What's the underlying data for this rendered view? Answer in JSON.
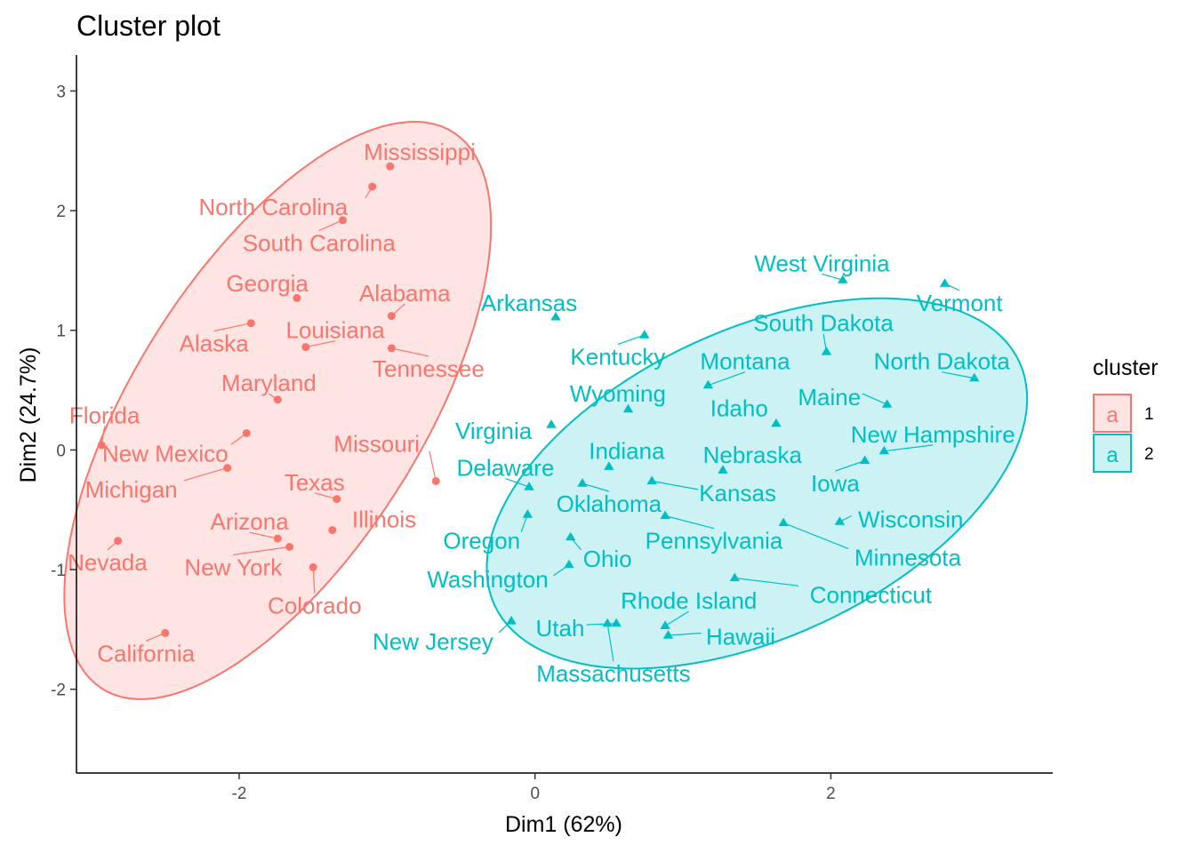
{
  "chart_data": {
    "type": "scatter",
    "title": "Cluster plot",
    "xlabel": "Dim1 (62%)",
    "ylabel": "Dim2 (24.7%)",
    "xlim": [
      -3.1,
      3.5
    ],
    "ylim": [
      -2.7,
      3.3
    ],
    "x_ticks": [
      -2,
      0,
      2
    ],
    "y_ticks": [
      -2,
      -1,
      0,
      1,
      2,
      3
    ],
    "grid": false,
    "legend": {
      "title": "cluster",
      "placement": "right",
      "entries": [
        {
          "label": "1",
          "key_glyph": "a"
        },
        {
          "label": "2",
          "key_glyph": "a"
        }
      ]
    },
    "colors": {
      "cluster1": "#F8766D",
      "cluster2": "#00BFC4"
    },
    "series": [
      {
        "name": "1",
        "marker": "circle",
        "points": [
          {
            "label": "Mississippi",
            "x": -0.98,
            "y": 2.37,
            "lx": -0.78,
            "ly": 2.49
          },
          {
            "label": "North Carolina",
            "x": -1.1,
            "y": 2.2,
            "lx": -1.77,
            "ly": 2.03
          },
          {
            "label": "South Carolina",
            "x": -1.3,
            "y": 1.92,
            "lx": -1.46,
            "ly": 1.73
          },
          {
            "label": "Georgia",
            "x": -1.61,
            "y": 1.27,
            "lx": -1.81,
            "ly": 1.39
          },
          {
            "label": "Alabama",
            "x": -0.97,
            "y": 1.12,
            "lx": -0.88,
            "ly": 1.31
          },
          {
            "label": "Alaska",
            "x": -1.92,
            "y": 1.06,
            "lx": -2.17,
            "ly": 0.89
          },
          {
            "label": "Louisiana",
            "x": -1.55,
            "y": 0.86,
            "lx": -1.35,
            "ly": 1.0
          },
          {
            "label": "Tennessee",
            "x": -0.97,
            "y": 0.85,
            "lx": -0.72,
            "ly": 0.68
          },
          {
            "label": "Maryland",
            "x": -1.74,
            "y": 0.42,
            "lx": -1.8,
            "ly": 0.56
          },
          {
            "label": "Florida",
            "x": -2.93,
            "y": 0.04,
            "lx": -2.91,
            "ly": 0.29
          },
          {
            "label": "New Mexico",
            "x": -1.95,
            "y": 0.14,
            "lx": -2.5,
            "ly": -0.03
          },
          {
            "label": "Michigan",
            "x": -2.08,
            "y": -0.15,
            "lx": -2.73,
            "ly": -0.33
          },
          {
            "label": "Missouri",
            "x": -0.67,
            "y": -0.26,
            "lx": -1.07,
            "ly": 0.05
          },
          {
            "label": "Texas",
            "x": -1.34,
            "y": -0.41,
            "lx": -1.49,
            "ly": -0.27
          },
          {
            "label": "Illinois",
            "x": -1.37,
            "y": -0.67,
            "lx": -1.02,
            "ly": -0.58
          },
          {
            "label": "Arizona",
            "x": -1.74,
            "y": -0.74,
            "lx": -1.93,
            "ly": -0.6
          },
          {
            "label": "New York",
            "x": -1.66,
            "y": -0.81,
            "lx": -2.04,
            "ly": -0.98
          },
          {
            "label": "Colorado",
            "x": -1.5,
            "y": -0.98,
            "lx": -1.49,
            "ly": -1.3
          },
          {
            "label": "Nevada",
            "x": -2.82,
            "y": -0.76,
            "lx": -2.89,
            "ly": -0.94
          },
          {
            "label": "California",
            "x": -2.5,
            "y": -1.53,
            "lx": -2.63,
            "ly": -1.7
          }
        ]
      },
      {
        "name": "2",
        "marker": "triangle",
        "points": [
          {
            "label": "West Virginia",
            "x": 2.08,
            "y": 1.42,
            "lx": 1.94,
            "ly": 1.56
          },
          {
            "label": "Vermont",
            "x": 2.77,
            "y": 1.39,
            "lx": 2.87,
            "ly": 1.23
          },
          {
            "label": "Arkansas",
            "x": 0.14,
            "y": 1.11,
            "lx": -0.04,
            "ly": 1.23
          },
          {
            "label": "South Dakota",
            "x": 1.97,
            "y": 0.82,
            "lx": 1.95,
            "ly": 1.06
          },
          {
            "label": "Kentucky",
            "x": 0.74,
            "y": 0.96,
            "lx": 0.56,
            "ly": 0.78
          },
          {
            "label": "Montana",
            "x": 1.17,
            "y": 0.54,
            "lx": 1.42,
            "ly": 0.74
          },
          {
            "label": "North Dakota",
            "x": 2.97,
            "y": 0.6,
            "lx": 2.75,
            "ly": 0.74
          },
          {
            "label": "Wyoming",
            "x": 0.63,
            "y": 0.34,
            "lx": 0.56,
            "ly": 0.47
          },
          {
            "label": "Idaho",
            "x": 1.63,
            "y": 0.22,
            "lx": 1.38,
            "ly": 0.35
          },
          {
            "label": "Maine",
            "x": 2.38,
            "y": 0.38,
            "lx": 1.99,
            "ly": 0.44
          },
          {
            "label": "Virginia",
            "x": 0.11,
            "y": 0.21,
            "lx": -0.28,
            "ly": 0.16
          },
          {
            "label": "New Hampshire",
            "x": 2.36,
            "y": -0.01,
            "lx": 2.69,
            "ly": 0.13
          },
          {
            "label": "Indiana",
            "x": 0.5,
            "y": -0.14,
            "lx": 0.62,
            "ly": -0.01
          },
          {
            "label": "Nebraska",
            "x": 1.27,
            "y": -0.17,
            "lx": 1.47,
            "ly": -0.04
          },
          {
            "label": "Iowa",
            "x": 2.23,
            "y": -0.09,
            "lx": 2.03,
            "ly": -0.28
          },
          {
            "label": "Delaware",
            "x": -0.04,
            "y": -0.31,
            "lx": -0.2,
            "ly": -0.15
          },
          {
            "label": "Kansas",
            "x": 0.79,
            "y": -0.26,
            "lx": 1.37,
            "ly": -0.36
          },
          {
            "label": "Oklahoma",
            "x": 0.32,
            "y": -0.28,
            "lx": 0.5,
            "ly": -0.45
          },
          {
            "label": "Oregon",
            "x": -0.05,
            "y": -0.54,
            "lx": -0.36,
            "ly": -0.76
          },
          {
            "label": "Wisconsin",
            "x": 2.06,
            "y": -0.6,
            "lx": 2.54,
            "ly": -0.58
          },
          {
            "label": "Pennsylvania",
            "x": 0.88,
            "y": -0.55,
            "lx": 1.21,
            "ly": -0.76
          },
          {
            "label": "Minnesota",
            "x": 1.68,
            "y": -0.61,
            "lx": 2.52,
            "ly": -0.9
          },
          {
            "label": "Ohio",
            "x": 0.24,
            "y": -0.73,
            "lx": 0.49,
            "ly": -0.91
          },
          {
            "label": "Washington",
            "x": 0.23,
            "y": -0.96,
            "lx": -0.32,
            "ly": -1.08
          },
          {
            "label": "Connecticut",
            "x": 1.35,
            "y": -1.07,
            "lx": 2.27,
            "ly": -1.21
          },
          {
            "label": "Rhode Island",
            "x": 0.88,
            "y": -1.47,
            "lx": 1.04,
            "ly": -1.26
          },
          {
            "label": "Utah",
            "x": 0.55,
            "y": -1.45,
            "lx": 0.17,
            "ly": -1.49
          },
          {
            "label": "Massachusetts",
            "x": 0.49,
            "y": -1.45,
            "lx": 0.53,
            "ly": -1.87
          },
          {
            "label": "Hawaii",
            "x": 0.9,
            "y": -1.55,
            "lx": 1.39,
            "ly": -1.56
          },
          {
            "label": "New Jersey",
            "x": -0.16,
            "y": -1.43,
            "lx": -0.69,
            "ly": -1.6
          }
        ]
      }
    ],
    "ellipses": [
      {
        "series": "1",
        "center": [
          -1.74,
          0.33
        ],
        "semi_axes": [
          2.62,
          1.02
        ],
        "angle_deg": 65
      },
      {
        "series": "2",
        "center": [
          1.5,
          -0.28
        ],
        "semi_axes": [
          2.06,
          1.22
        ],
        "angle_deg": 35
      }
    ]
  }
}
